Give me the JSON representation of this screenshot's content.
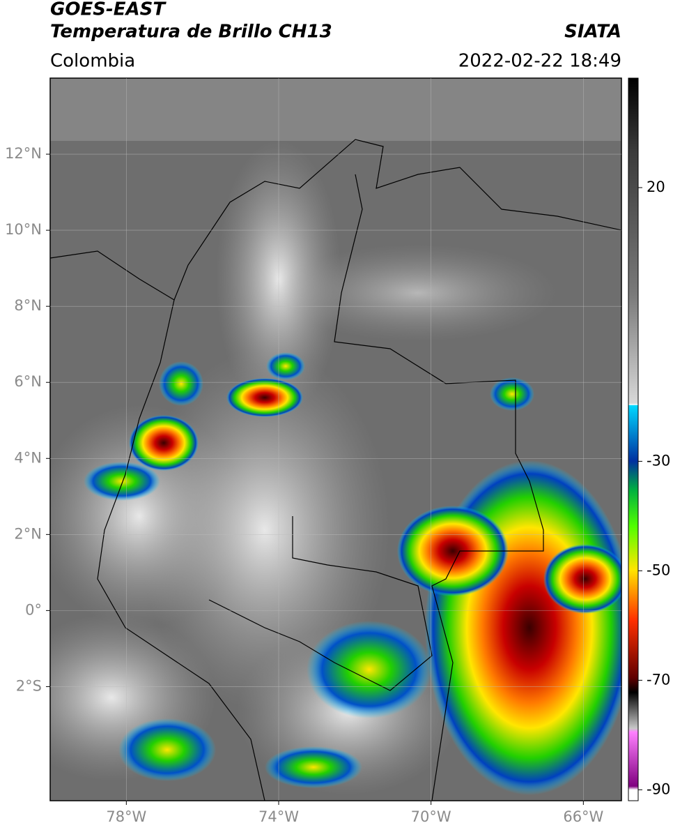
{
  "header": {
    "title": "GOES-EAST",
    "subtitle": "Temperatura de Brillo CH13",
    "region": "Colombia",
    "source": "SIATA",
    "datetime": "2022-02-22 18:49"
  },
  "map": {
    "xlim": [
      -80,
      -65
    ],
    "ylim": [
      -5,
      14
    ],
    "grid": true,
    "xticks": [
      {
        "value": -78,
        "label": "78°W"
      },
      {
        "value": -74,
        "label": "74°W"
      },
      {
        "value": -70,
        "label": "70°W"
      },
      {
        "value": -66,
        "label": "66°W"
      }
    ],
    "yticks": [
      {
        "value": 12,
        "label": "12°N"
      },
      {
        "value": 10,
        "label": "10°N"
      },
      {
        "value": 8,
        "label": "8°N"
      },
      {
        "value": 6,
        "label": "6°N"
      },
      {
        "value": 4,
        "label": "4°N"
      },
      {
        "value": 2,
        "label": "2°N"
      },
      {
        "value": 0,
        "label": "0°"
      },
      {
        "value": -2,
        "label": "2°S"
      }
    ]
  },
  "colorbar": {
    "lim": [
      -92,
      40
    ],
    "ticks": [
      20,
      -30,
      -50,
      -70,
      -90
    ]
  }
}
